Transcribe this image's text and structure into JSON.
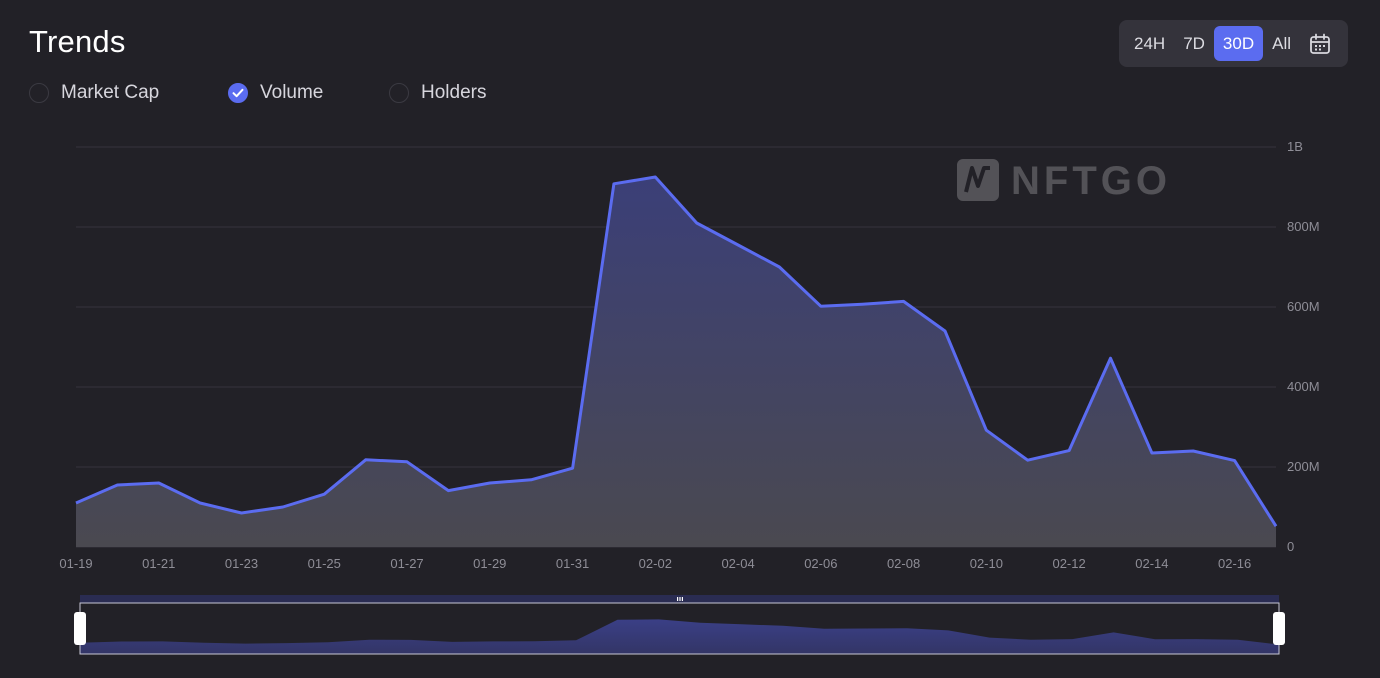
{
  "title": "Trends",
  "metrics": [
    {
      "label": "Market Cap",
      "checked": false
    },
    {
      "label": "Volume",
      "checked": true
    },
    {
      "label": "Holders",
      "checked": false
    }
  ],
  "range_buttons": [
    "24H",
    "7D",
    "30D",
    "All"
  ],
  "range_active": "30D",
  "icons": {
    "calendar": "calendar-icon",
    "check": "check-icon"
  },
  "watermark": "NFTGO",
  "colors": {
    "accent": "#5b6cf0",
    "background": "#222127",
    "button_group": "#34333b"
  },
  "chart_data": {
    "type": "area",
    "x": [
      "01-19",
      "01-20",
      "01-21",
      "01-22",
      "01-23",
      "01-24",
      "01-25",
      "01-26",
      "01-27",
      "01-28",
      "01-29",
      "01-30",
      "01-31",
      "02-01",
      "02-02",
      "02-03",
      "02-04",
      "02-05",
      "02-06",
      "02-07",
      "02-08",
      "02-09",
      "02-10",
      "02-11",
      "02-12",
      "02-13",
      "02-14",
      "02-15",
      "02-16",
      "02-17"
    ],
    "series": [
      {
        "name": "Volume",
        "values": [
          110000000,
          155000000,
          160000000,
          110000000,
          85000000,
          100000000,
          132000000,
          218000000,
          213000000,
          141000000,
          160000000,
          168000000,
          197000000,
          908000000,
          925000000,
          810000000,
          755000000,
          700000000,
          602000000,
          607000000,
          614000000,
          540000000,
          292000000,
          217000000,
          241000000,
          472000000,
          235000000,
          240000000,
          216000000,
          52000000
        ]
      }
    ],
    "x_tick_labels": [
      "01-19",
      "01-21",
      "01-23",
      "01-25",
      "01-27",
      "01-29",
      "01-31",
      "02-02",
      "02-04",
      "02-06",
      "02-08",
      "02-10",
      "02-12",
      "02-14",
      "02-16"
    ],
    "y_tick_labels": [
      "0",
      "200M",
      "400M",
      "600M",
      "800M",
      "1B"
    ],
    "y_ticks": [
      0,
      200000000,
      400000000,
      600000000,
      800000000,
      1000000000
    ],
    "ylim": [
      0,
      1000000000
    ],
    "grid": true,
    "legend": "none"
  }
}
